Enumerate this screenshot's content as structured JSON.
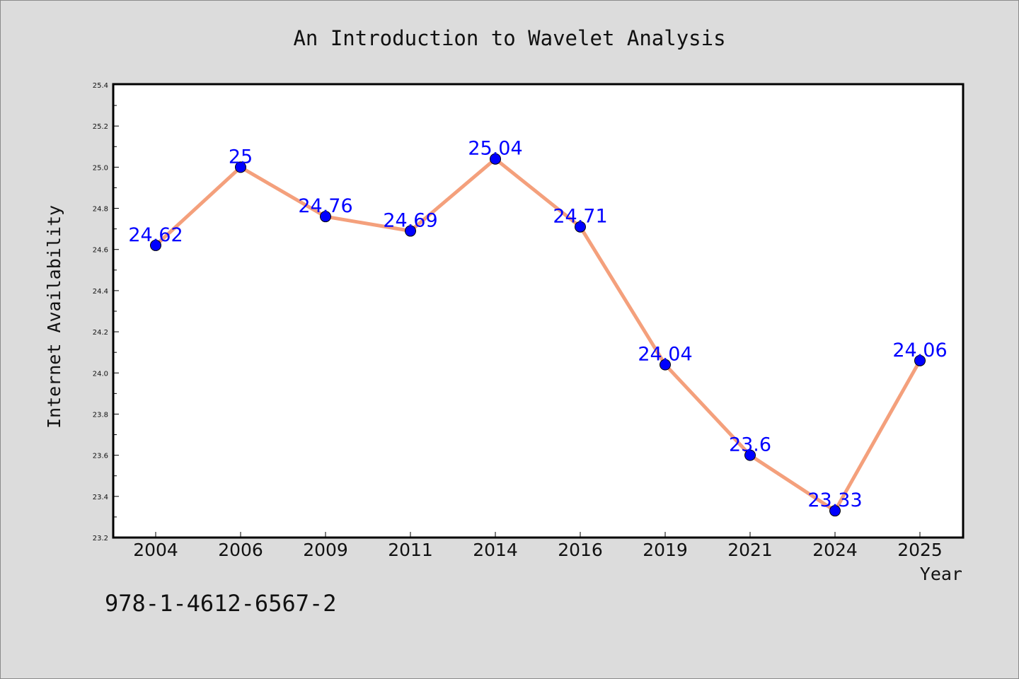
{
  "chart_data": {
    "type": "line",
    "title": "An Introduction to Wavelet Analysis",
    "xlabel": "Year",
    "ylabel": "Internet Availability",
    "categories": [
      "2004",
      "2006",
      "2009",
      "2011",
      "2014",
      "2016",
      "2019",
      "2021",
      "2024",
      "2025"
    ],
    "values": [
      24.62,
      25,
      24.76,
      24.69,
      25.04,
      24.71,
      24.04,
      23.6,
      23.33,
      24.06
    ],
    "data_labels": [
      "24.62",
      "25",
      "24.76",
      "24.69",
      "25.04",
      "24.71",
      "24.04",
      "23.6",
      "23.33",
      "24.06"
    ],
    "ylim": [
      23.2,
      25.4
    ],
    "yticks": [
      "23.2",
      "23.4",
      "23.6",
      "23.8",
      "24.0",
      "24.2",
      "24.4",
      "24.6",
      "24.8",
      "25.0",
      "25.2",
      "25.4"
    ],
    "grid": false,
    "legend": "none",
    "line_color": "#f4a07c",
    "marker_color": "#0000ff",
    "label_color": "#0000ff"
  },
  "footer": {
    "isbn": "978-1-4612-6567-2"
  }
}
